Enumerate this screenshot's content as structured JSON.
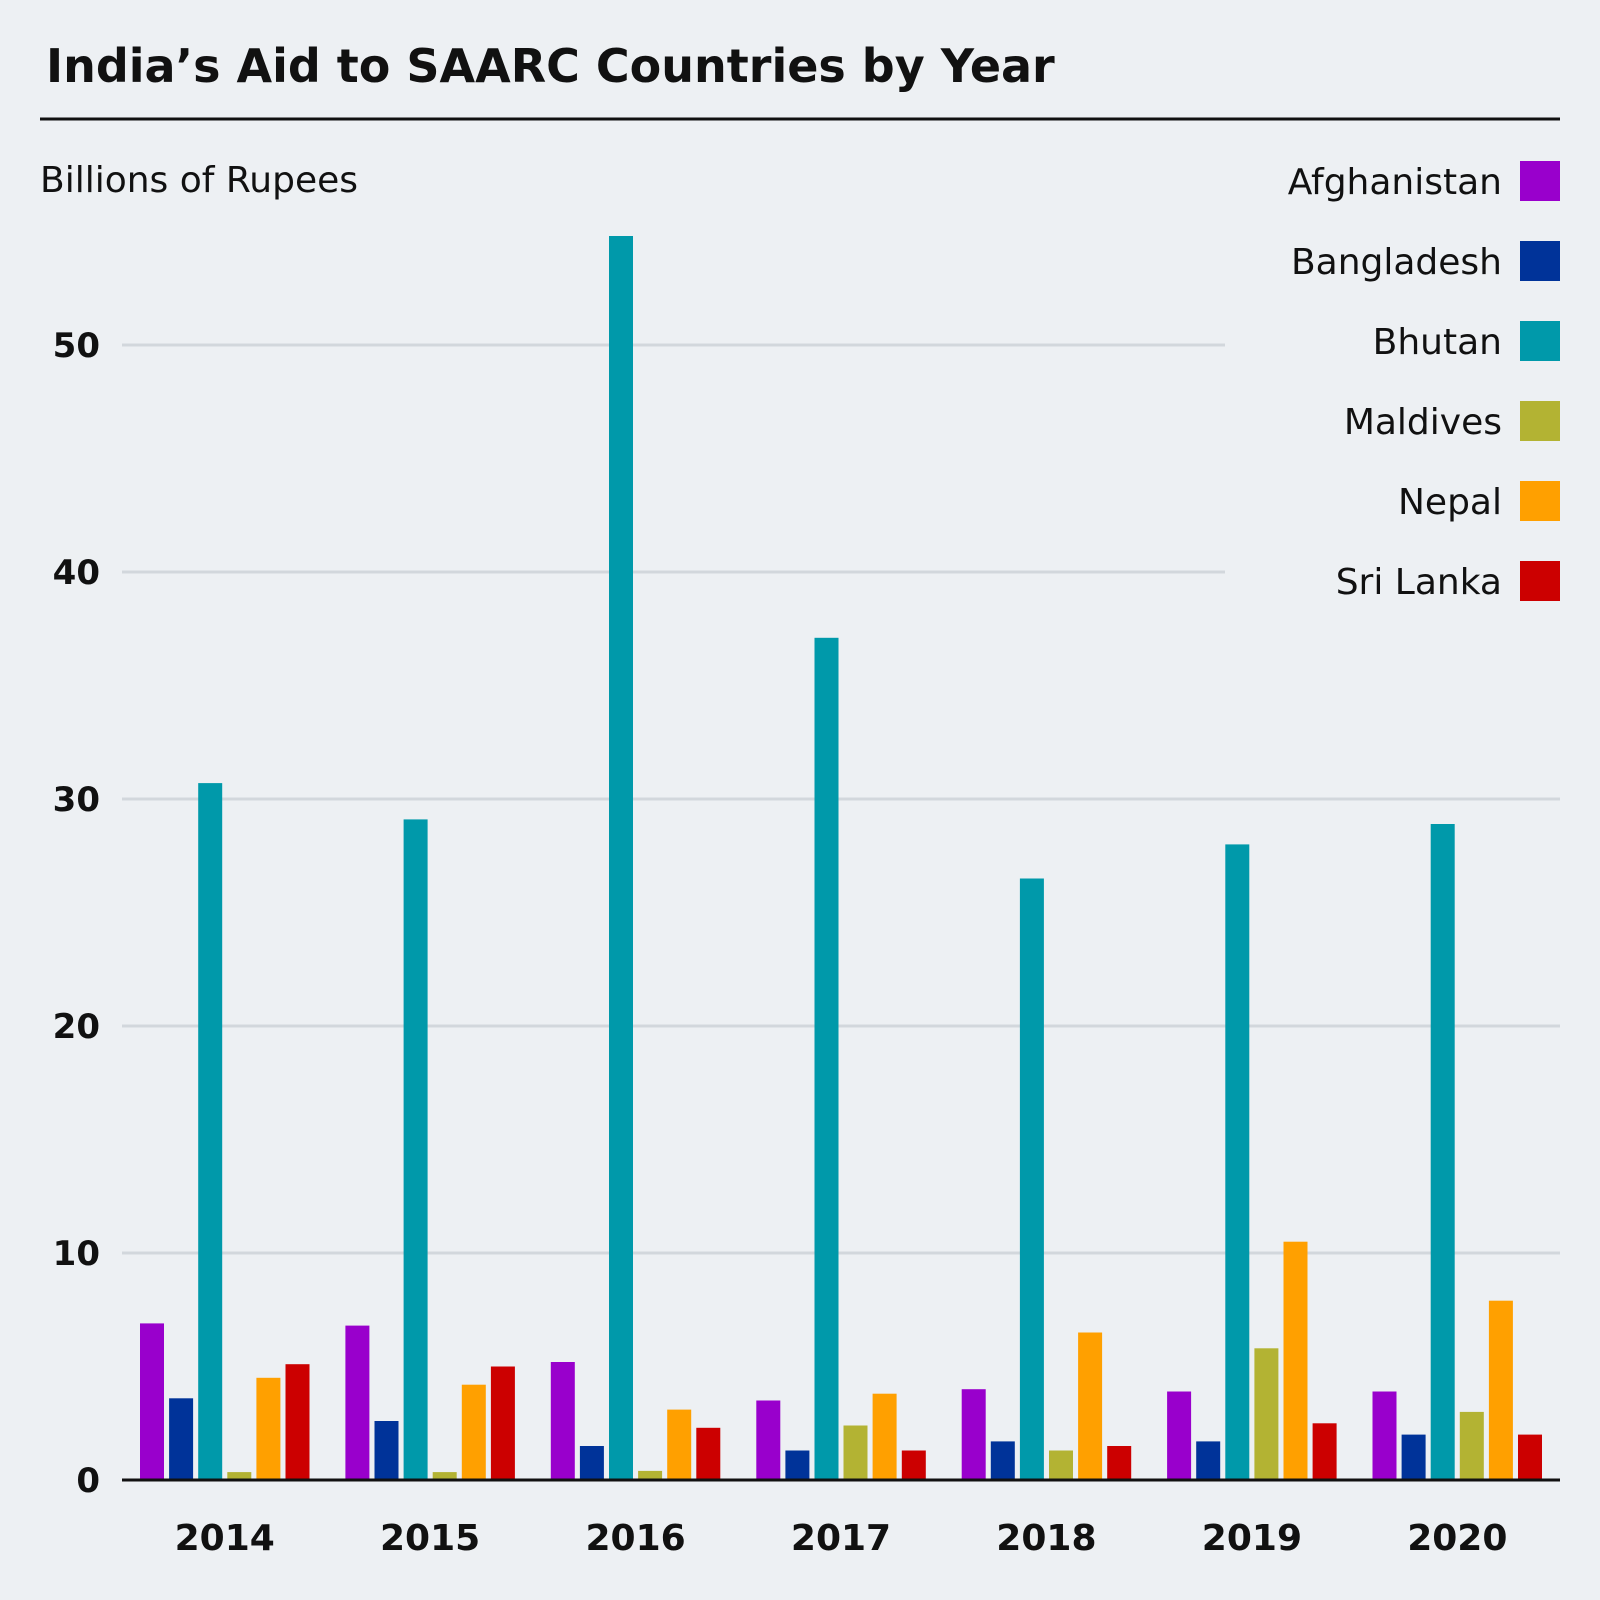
{
  "chart_data": {
    "type": "bar",
    "title": "India’s Aid to SAARC Countries by Year",
    "ylabel": "Billions of Rupees",
    "xlabel": "",
    "ylim": [
      0,
      55
    ],
    "yticks": [
      0,
      10,
      20,
      30,
      40,
      50
    ],
    "grid": true,
    "legend_position": "top-right",
    "categories": [
      "2014",
      "2015",
      "2016",
      "2017",
      "2018",
      "2019",
      "2020"
    ],
    "series": [
      {
        "name": "Afghanistan",
        "color": "#9900cc",
        "values": [
          6.9,
          6.8,
          5.2,
          3.5,
          4.0,
          3.9,
          3.9
        ]
      },
      {
        "name": "Bangladesh",
        "color": "#003399",
        "values": [
          3.6,
          2.6,
          1.5,
          1.3,
          1.7,
          1.7,
          2.0
        ]
      },
      {
        "name": "Bhutan",
        "color": "#0099aa",
        "values": [
          30.7,
          29.1,
          54.8,
          37.1,
          26.5,
          28.0,
          28.9
        ]
      },
      {
        "name": "Maldives",
        "color": "#b3b333",
        "values": [
          0.35,
          0.35,
          0.4,
          2.4,
          1.3,
          5.8,
          3.0
        ]
      },
      {
        "name": "Nepal",
        "color": "#ffa000",
        "values": [
          4.5,
          4.2,
          3.1,
          3.8,
          6.5,
          10.5,
          7.9
        ]
      },
      {
        "name": "Sri Lanka",
        "color": "#cc0000",
        "values": [
          5.1,
          5.0,
          2.3,
          1.3,
          1.5,
          2.5,
          2.0
        ]
      }
    ]
  }
}
